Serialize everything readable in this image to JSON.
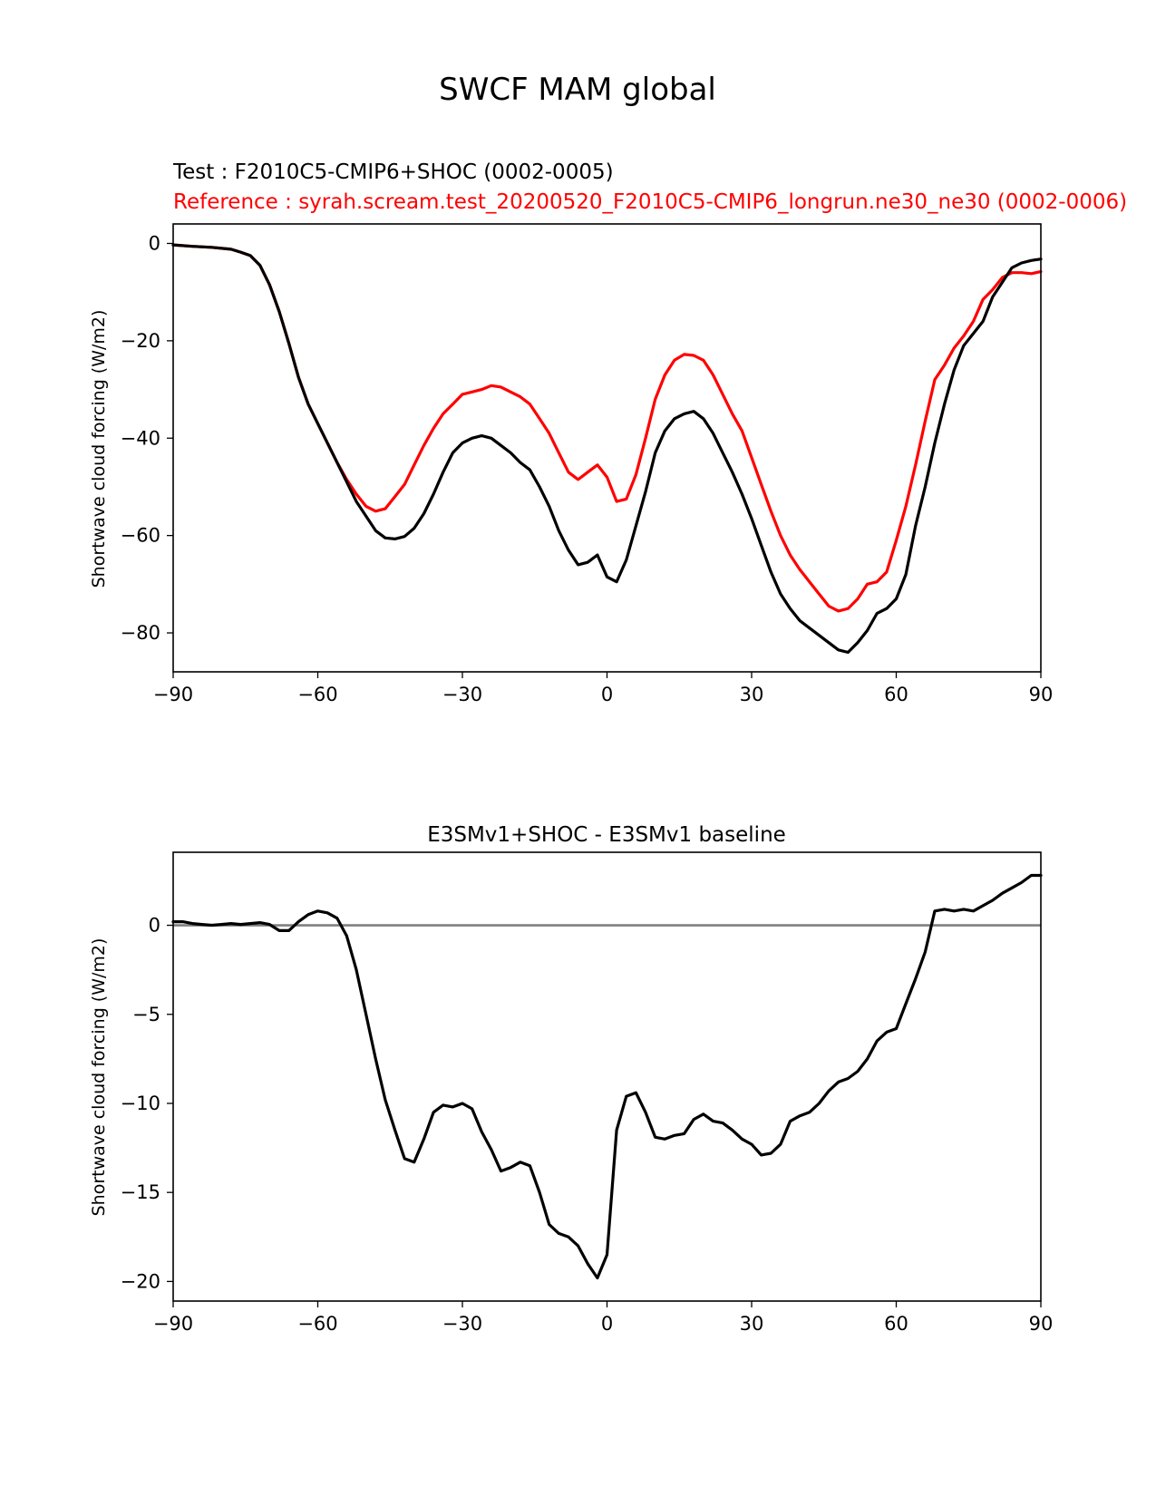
{
  "figure": {
    "title": "SWCF MAM global",
    "test_label": "Test : F2010C5-CMIP6+SHOC (0002-0005)",
    "reference_label": "Reference : syrah.scream.test_20200520_F2010C5-CMIP6_longrun.ne30_ne30 (0002-0006)",
    "colors": {
      "test": "#000000",
      "reference": "#ff0000",
      "zero_line": "#808080"
    }
  },
  "chart_data": [
    {
      "type": "line",
      "title": "",
      "xlabel": "",
      "ylabel": "Shortwave cloud forcing (W/m2)",
      "xlim": [
        -90,
        90
      ],
      "ylim": [
        -88,
        4
      ],
      "xticks": [
        -90,
        -60,
        -30,
        0,
        30,
        60,
        90
      ],
      "xtick_labels": [
        "−90",
        "−60",
        "−30",
        "0",
        "30",
        "60",
        "90"
      ],
      "yticks": [
        0,
        -20,
        -40,
        -60,
        -80
      ],
      "ytick_labels": [
        "0",
        "−20",
        "−40",
        "−60",
        "−80"
      ],
      "series": [
        {
          "name": "Test",
          "color": "#000000",
          "x": [
            -90,
            -86,
            -82,
            -78,
            -76,
            -74,
            -72,
            -70,
            -68,
            -66,
            -64,
            -62,
            -60,
            -58,
            -56,
            -54,
            -52,
            -50,
            -48,
            -46,
            -44,
            -42,
            -40,
            -38,
            -36,
            -34,
            -32,
            -30,
            -28,
            -26,
            -24,
            -22,
            -20,
            -18,
            -16,
            -14,
            -12,
            -10,
            -8,
            -6,
            -4,
            -2,
            0,
            2,
            4,
            6,
            8,
            10,
            12,
            14,
            16,
            18,
            20,
            22,
            24,
            26,
            28,
            30,
            32,
            34,
            36,
            38,
            40,
            42,
            44,
            46,
            48,
            50,
            52,
            54,
            56,
            58,
            60,
            62,
            64,
            66,
            68,
            70,
            72,
            74,
            76,
            78,
            80,
            82,
            84,
            86,
            88,
            90
          ],
          "y": [
            -0.3,
            -0.6,
            -0.8,
            -1.2,
            -1.8,
            -2.5,
            -4.5,
            -8.5,
            -14,
            -20.5,
            -27.5,
            -33,
            -37,
            -41,
            -45,
            -49,
            -53,
            -56,
            -59,
            -60.5,
            -60.7,
            -60.2,
            -58.5,
            -55.5,
            -51.5,
            -47,
            -43,
            -41,
            -40,
            -39.5,
            -40,
            -41.5,
            -43,
            -45,
            -46.5,
            -50,
            -54,
            -59,
            -63,
            -66,
            -65.5,
            -64,
            -68.5,
            -69.5,
            -65,
            -58,
            -51,
            -43,
            -38.5,
            -36,
            -35,
            -34.5,
            -36,
            -39,
            -43,
            -47,
            -51.5,
            -56.5,
            -62,
            -67.5,
            -72,
            -75,
            -77.5,
            -79,
            -80.5,
            -82,
            -83.5,
            -84,
            -82,
            -79.5,
            -76,
            -75,
            -73,
            -68,
            -58,
            -50,
            -41,
            -33,
            -26,
            -21,
            -18.5,
            -16,
            -11,
            -8,
            -5,
            -4,
            -3.5,
            -3.2
          ]
        },
        {
          "name": "Reference",
          "color": "#ff0000",
          "x": [
            -90,
            -86,
            -82,
            -78,
            -76,
            -74,
            -72,
            -70,
            -68,
            -66,
            -64,
            -62,
            -60,
            -58,
            -56,
            -54,
            -52,
            -50,
            -48,
            -46,
            -44,
            -42,
            -40,
            -38,
            -36,
            -34,
            -32,
            -30,
            -28,
            -26,
            -24,
            -22,
            -20,
            -18,
            -16,
            -14,
            -12,
            -10,
            -8,
            -6,
            -4,
            -2,
            0,
            2,
            4,
            6,
            8,
            10,
            12,
            14,
            16,
            18,
            20,
            22,
            24,
            26,
            28,
            30,
            32,
            34,
            36,
            38,
            40,
            42,
            44,
            46,
            48,
            50,
            52,
            54,
            56,
            58,
            60,
            62,
            64,
            66,
            68,
            70,
            72,
            74,
            76,
            78,
            80,
            82,
            84,
            86,
            88,
            90
          ],
          "y": [
            -0.3,
            -0.6,
            -0.8,
            -1.2,
            -1.8,
            -2.5,
            -4.5,
            -8.5,
            -14,
            -20.5,
            -27.5,
            -33,
            -37,
            -41,
            -45,
            -48.5,
            -51.5,
            -54,
            -55,
            -54.5,
            -52,
            -49.5,
            -45.5,
            -41.5,
            -38,
            -35,
            -33,
            -31,
            -30.5,
            -30,
            -29.2,
            -29.5,
            -30.5,
            -31.5,
            -33,
            -36,
            -39,
            -43,
            -47,
            -48.5,
            -47,
            -45.5,
            -48,
            -53,
            -52.5,
            -47.5,
            -40,
            -32,
            -27,
            -24,
            -22.8,
            -23,
            -24,
            -27,
            -31,
            -35,
            -38.5,
            -44,
            -49.5,
            -55,
            -60,
            -64,
            -67,
            -69.5,
            -72,
            -74.5,
            -75.5,
            -75,
            -73,
            -70,
            -69.5,
            -67.5,
            -61,
            -54,
            -45.5,
            -36.5,
            -28,
            -25,
            -21.5,
            -19,
            -16,
            -11.5,
            -9.5,
            -7,
            -6,
            -6,
            -6.2,
            -5.8
          ]
        }
      ]
    },
    {
      "type": "line",
      "title": "E3SMv1+SHOC - E3SMv1 baseline",
      "xlabel": "",
      "ylabel": "Shortwave cloud forcing (W/m2)",
      "xlim": [
        -90,
        90
      ],
      "ylim": [
        -21.1,
        4.1
      ],
      "xticks": [
        -90,
        -60,
        -30,
        0,
        30,
        60,
        90
      ],
      "xtick_labels": [
        "−90",
        "−60",
        "−30",
        "0",
        "30",
        "60",
        "90"
      ],
      "yticks": [
        0,
        -5,
        -10,
        -15,
        -20
      ],
      "ytick_labels": [
        "0",
        "−5",
        "−10",
        "−15",
        "−20"
      ],
      "zero_line": 0,
      "series": [
        {
          "name": "E3SMv1+SHOC - E3SMv1 baseline",
          "color": "#000000",
          "x": [
            -90,
            -88,
            -86,
            -84,
            -82,
            -80,
            -78,
            -76,
            -74,
            -72,
            -70,
            -68,
            -66,
            -64,
            -62,
            -60,
            -58,
            -56,
            -54,
            -52,
            -50,
            -48,
            -46,
            -44,
            -42,
            -40,
            -38,
            -36,
            -34,
            -32,
            -30,
            -28,
            -26,
            -24,
            -22,
            -20,
            -18,
            -16,
            -14,
            -12,
            -10,
            -8,
            -6,
            -4,
            -2,
            0,
            2,
            4,
            6,
            8,
            10,
            12,
            14,
            16,
            18,
            20,
            22,
            24,
            26,
            28,
            30,
            32,
            34,
            36,
            38,
            40,
            42,
            44,
            46,
            48,
            50,
            52,
            54,
            56,
            58,
            60,
            62,
            64,
            66,
            68,
            70,
            72,
            74,
            76,
            78,
            80,
            82,
            84,
            86,
            88,
            90
          ],
          "y": [
            0.2,
            0.2,
            0.1,
            0.05,
            0.0,
            0.05,
            0.1,
            0.05,
            0.1,
            0.15,
            0.05,
            -0.3,
            -0.3,
            0.2,
            0.6,
            0.8,
            0.7,
            0.4,
            -0.6,
            -2.5,
            -5,
            -7.5,
            -9.8,
            -11.5,
            -13.1,
            -13.3,
            -12,
            -10.5,
            -10.1,
            -10.2,
            -10,
            -10.3,
            -11.6,
            -12.6,
            -13.8,
            -13.6,
            -13.3,
            -13.5,
            -15,
            -16.8,
            -17.3,
            -17.5,
            -18,
            -19,
            -19.8,
            -18.5,
            -11.5,
            -9.6,
            -9.4,
            -10.5,
            -11.9,
            -12,
            -11.8,
            -11.7,
            -10.9,
            -10.6,
            -11,
            -11.1,
            -11.5,
            -12,
            -12.3,
            -12.9,
            -12.8,
            -12.3,
            -11,
            -10.7,
            -10.5,
            -10,
            -9.3,
            -8.8,
            -8.6,
            -8.2,
            -7.5,
            -6.5,
            -6,
            -5.8,
            -4.4,
            -3,
            -1.5,
            0.8,
            0.9,
            0.8,
            0.9,
            0.8,
            1.1,
            1.4,
            1.8,
            2.1,
            2.4,
            2.8,
            2.8
          ]
        }
      ]
    }
  ]
}
